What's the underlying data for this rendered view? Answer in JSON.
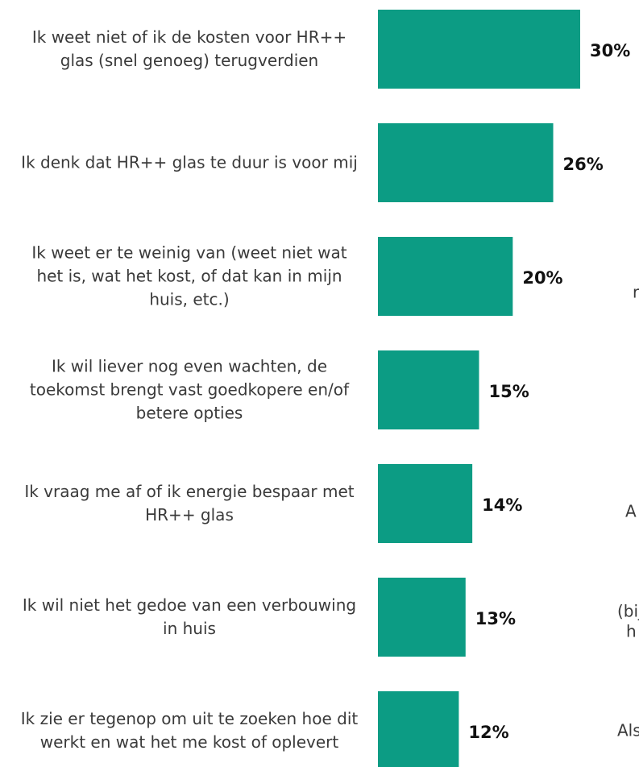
{
  "chart_data": {
    "type": "bar",
    "orientation": "horizontal",
    "categories": [
      "Ik weet niet of ik de kosten voor HR++ glas (snel genoeg) terugverdien",
      "Ik denk dat HR++ glas te duur is voor mij",
      "Ik weet er te weinig van (weet niet wat het is, wat het kost, of dat kan in mijn huis, etc.)",
      "Ik wil liever nog even wachten, de toekomst brengt vast goedkopere en/of betere opties",
      "Ik vraag me af of ik energie bespaar met HR++ glas",
      "Ik wil niet het gedoe van een verbouwing in huis",
      "Ik zie er tegenop om uit te zoeken hoe dit werkt en wat het me kost of oplevert"
    ],
    "values": [
      30,
      26,
      20,
      15,
      14,
      13,
      12
    ],
    "value_labels": [
      "30%",
      "26%",
      "20%",
      "15%",
      "14%",
      "13%",
      "12%"
    ],
    "color": "#0c9c84",
    "xlim": [
      0,
      30
    ],
    "annotations": [
      "r",
      "A",
      "(bijv",
      "h",
      "Als"
    ]
  }
}
